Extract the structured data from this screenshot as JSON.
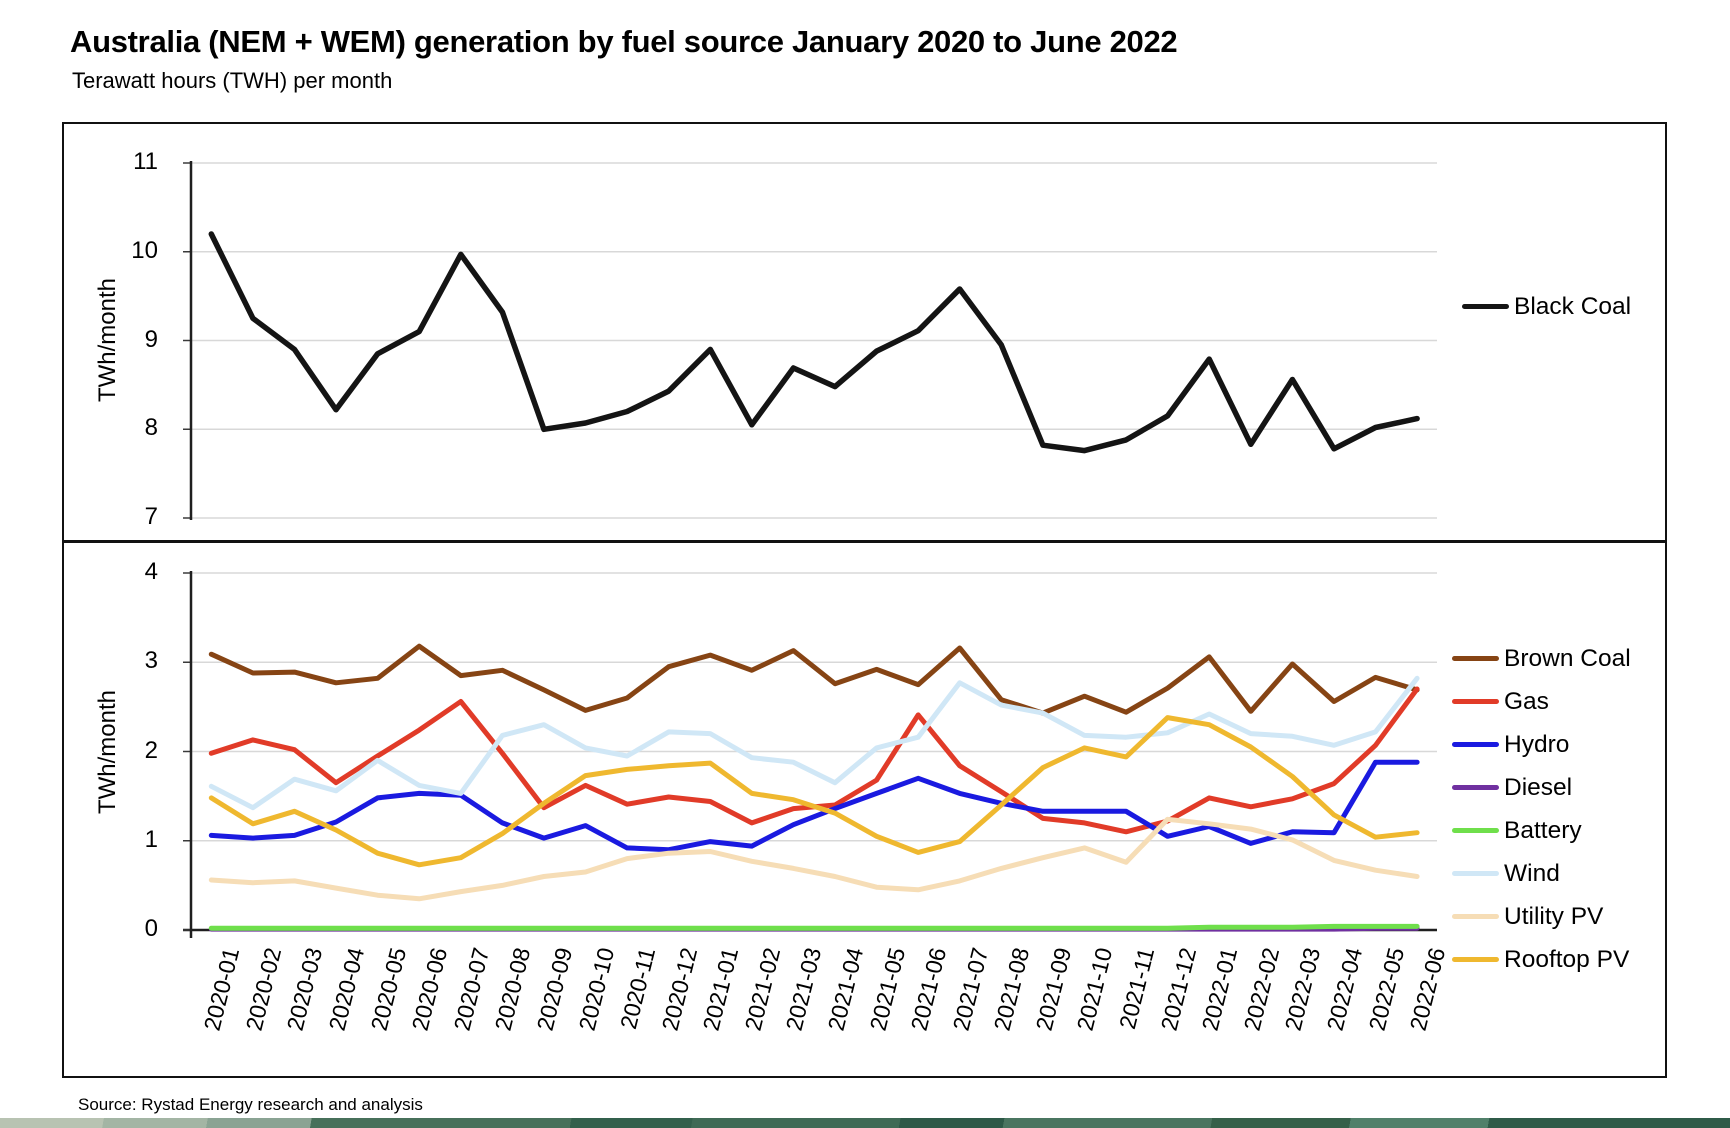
{
  "title": "Australia (NEM + WEM) generation by fuel source January 2020 to June 2022",
  "subtitle": "Terawatt hours (TWH) per month",
  "source": "Source: Rystad Energy research and analysis",
  "chart_data": [
    {
      "type": "line",
      "panel": "top",
      "ylabel": "TWh/month",
      "ylim": [
        7,
        11
      ],
      "yticks": [
        7,
        8,
        9,
        10,
        11
      ],
      "grid": true,
      "legend_position": "right",
      "x": [
        "2020-01",
        "2020-02",
        "2020-03",
        "2020-04",
        "2020-05",
        "2020-06",
        "2020-07",
        "2020-08",
        "2020-09",
        "2020-10",
        "2020-11",
        "2020-12",
        "2021-01",
        "2021-02",
        "2021-03",
        "2021-04",
        "2021-05",
        "2021-06",
        "2021-07",
        "2021-08",
        "2021-09",
        "2021-10",
        "2021-11",
        "2021-12",
        "2022-01",
        "2022-02",
        "2022-03",
        "2022-04",
        "2022-05",
        "2022-06"
      ],
      "series": [
        {
          "name": "Black Coal",
          "color": "#141414",
          "values": [
            10.2,
            9.25,
            8.9,
            8.22,
            8.85,
            9.1,
            9.97,
            9.32,
            8.0,
            8.07,
            8.2,
            8.43,
            8.9,
            8.05,
            8.69,
            8.48,
            8.88,
            9.11,
            9.58,
            8.95,
            7.82,
            7.76,
            7.88,
            8.15,
            8.79,
            7.83,
            8.56,
            7.78,
            8.02,
            8.12
          ]
        }
      ]
    },
    {
      "type": "line",
      "panel": "bottom",
      "ylabel": "TWh/month",
      "ylim": [
        0,
        4
      ],
      "yticks": [
        0,
        1,
        2,
        3,
        4
      ],
      "grid": true,
      "legend_position": "right",
      "x": [
        "2020-01",
        "2020-02",
        "2020-03",
        "2020-04",
        "2020-05",
        "2020-06",
        "2020-07",
        "2020-08",
        "2020-09",
        "2020-10",
        "2020-11",
        "2020-12",
        "2021-01",
        "2021-02",
        "2021-03",
        "2021-04",
        "2021-05",
        "2021-06",
        "2021-07",
        "2021-08",
        "2021-09",
        "2021-10",
        "2021-11",
        "2021-12",
        "2022-01",
        "2022-02",
        "2022-03",
        "2022-04",
        "2022-05",
        "2022-06"
      ],
      "series": [
        {
          "name": "Brown Coal",
          "color": "#864414",
          "values": [
            3.09,
            2.88,
            2.89,
            2.77,
            2.82,
            3.18,
            2.85,
            2.91,
            2.69,
            2.46,
            2.6,
            2.95,
            3.08,
            2.91,
            3.13,
            2.76,
            2.92,
            2.75,
            3.16,
            2.58,
            2.43,
            2.62,
            2.44,
            2.71,
            3.06,
            2.45,
            2.98,
            2.56,
            2.83,
            2.69
          ]
        },
        {
          "name": "Gas",
          "color": "#e13b28",
          "values": [
            1.98,
            2.13,
            2.02,
            1.65,
            1.95,
            2.24,
            2.56,
            1.98,
            1.37,
            1.62,
            1.41,
            1.49,
            1.44,
            1.2,
            1.36,
            1.4,
            1.68,
            2.41,
            1.84,
            1.55,
            1.25,
            1.2,
            1.1,
            1.22,
            1.48,
            1.38,
            1.47,
            1.64,
            2.07,
            2.7
          ]
        },
        {
          "name": "Hydro",
          "color": "#1a1ae0",
          "values": [
            1.06,
            1.03,
            1.06,
            1.21,
            1.48,
            1.53,
            1.51,
            1.2,
            1.03,
            1.17,
            0.92,
            0.9,
            0.99,
            0.94,
            1.18,
            1.36,
            1.53,
            1.7,
            1.53,
            1.42,
            1.33,
            1.33,
            1.33,
            1.05,
            1.16,
            0.97,
            1.1,
            1.09,
            1.88,
            1.88
          ]
        },
        {
          "name": "Diesel",
          "color": "#7030a0",
          "values": [
            0.01,
            0.01,
            0.01,
            0.01,
            0.01,
            0.01,
            0.01,
            0.01,
            0.01,
            0.01,
            0.01,
            0.01,
            0.01,
            0.01,
            0.01,
            0.01,
            0.01,
            0.01,
            0.01,
            0.01,
            0.01,
            0.01,
            0.01,
            0.01,
            0.01,
            0.01,
            0.01,
            0.01,
            0.02,
            0.02
          ]
        },
        {
          "name": "Battery",
          "color": "#6fdf4b",
          "values": [
            0.02,
            0.02,
            0.02,
            0.02,
            0.02,
            0.02,
            0.02,
            0.02,
            0.02,
            0.02,
            0.02,
            0.02,
            0.02,
            0.02,
            0.02,
            0.02,
            0.02,
            0.02,
            0.02,
            0.02,
            0.02,
            0.02,
            0.02,
            0.02,
            0.03,
            0.03,
            0.03,
            0.04,
            0.04,
            0.04
          ]
        },
        {
          "name": "Wind",
          "color": "#d0e7f6",
          "values": [
            1.61,
            1.37,
            1.69,
            1.56,
            1.9,
            1.62,
            1.53,
            2.18,
            2.3,
            2.04,
            1.95,
            2.22,
            2.2,
            1.93,
            1.88,
            1.65,
            2.04,
            2.16,
            2.77,
            2.52,
            2.43,
            2.18,
            2.16,
            2.21,
            2.42,
            2.2,
            2.17,
            2.07,
            2.22,
            2.82
          ]
        },
        {
          "name": "Utility PV",
          "color": "#f6ddb6",
          "values": [
            0.56,
            0.53,
            0.55,
            0.47,
            0.39,
            0.35,
            0.43,
            0.5,
            0.6,
            0.65,
            0.8,
            0.86,
            0.88,
            0.77,
            0.69,
            0.6,
            0.48,
            0.45,
            0.55,
            0.69,
            0.81,
            0.92,
            0.76,
            1.24,
            1.19,
            1.13,
            1.01,
            0.78,
            0.67,
            0.6
          ]
        },
        {
          "name": "Rooftop PV",
          "color": "#efb82f",
          "values": [
            1.48,
            1.19,
            1.33,
            1.12,
            0.86,
            0.73,
            0.81,
            1.08,
            1.42,
            1.73,
            1.8,
            1.84,
            1.87,
            1.53,
            1.46,
            1.31,
            1.05,
            0.87,
            0.99,
            1.4,
            1.82,
            2.04,
            1.94,
            2.38,
            2.3,
            2.05,
            1.72,
            1.29,
            1.04,
            1.09
          ]
        }
      ]
    }
  ]
}
